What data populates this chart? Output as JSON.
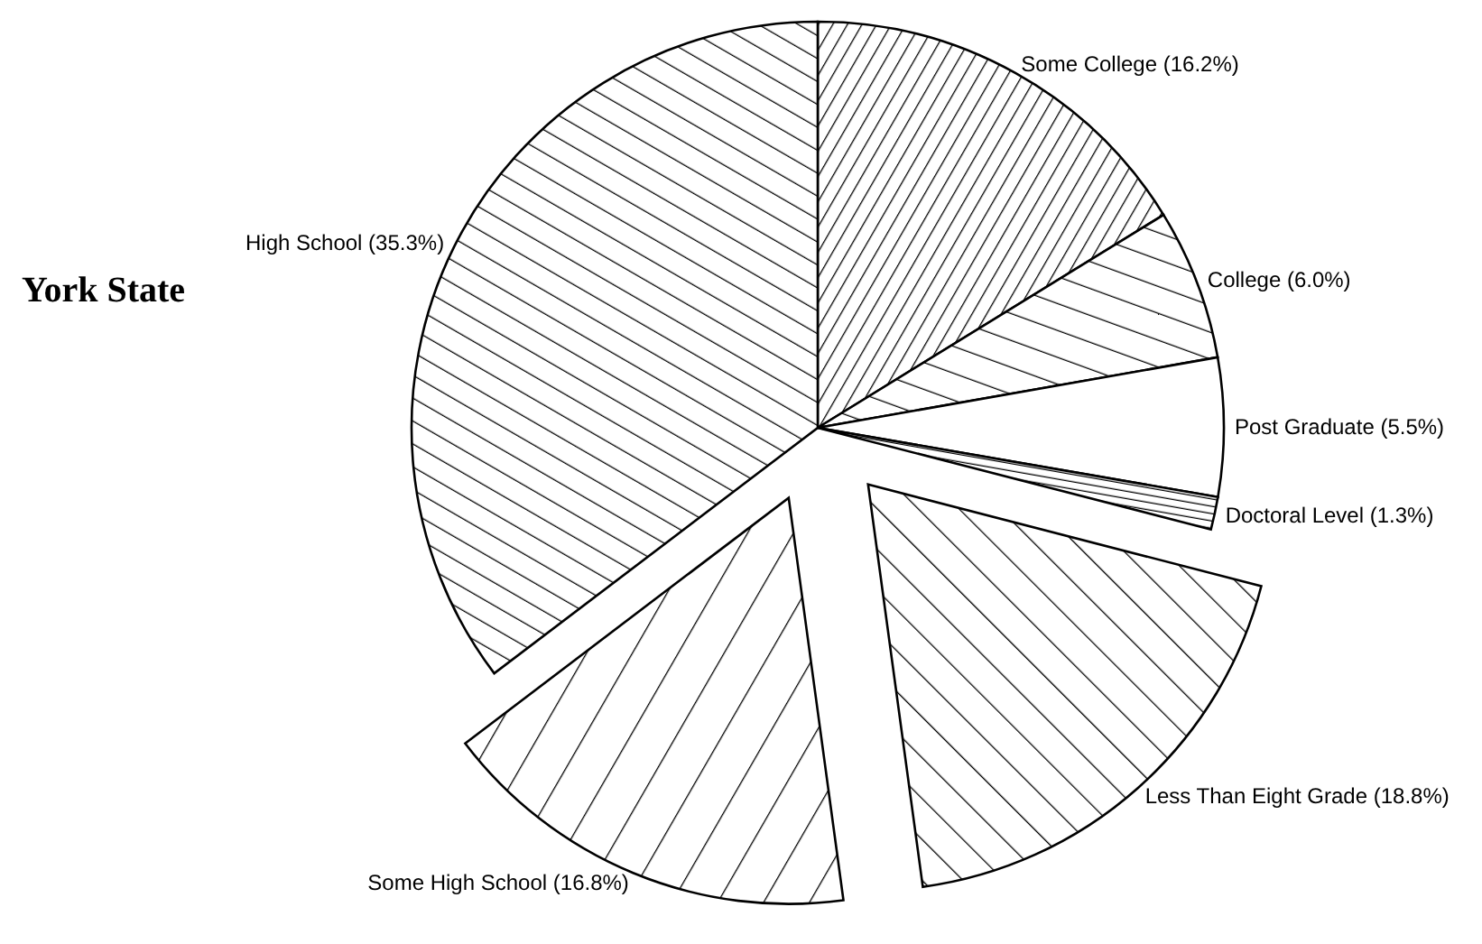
{
  "chart_data": {
    "type": "pie",
    "title": "York State",
    "categories": [
      "Some College (16.2%)",
      "College (6.0%)",
      "Post Graduate (5.5%)",
      "Doctoral Level (1.3%)",
      "Less Than Eight Grade (18.8%)",
      "Some High School (16.8%)",
      "High School (35.3%)"
    ],
    "values": [
      16.2,
      6.0,
      5.5,
      1.3,
      18.8,
      16.8,
      35.3
    ]
  }
}
